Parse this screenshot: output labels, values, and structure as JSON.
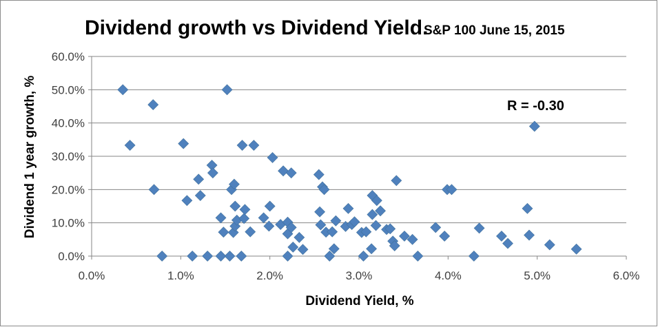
{
  "chart_data": {
    "type": "scatter",
    "title": "Dividend growth vs Dividend Yield.",
    "subtitle": "S&P 100 June 15, 2015",
    "xlabel": "Dividend Yield, %",
    "ylabel": "Dividend 1 year growth, %",
    "xlim": [
      0,
      6
    ],
    "ylim": [
      0,
      60
    ],
    "x_ticks": [
      "0.0%",
      "1.0%",
      "2.0%",
      "3.0%",
      "4.0%",
      "5.0%",
      "6.0%"
    ],
    "y_ticks": [
      "0.0%",
      "10.0%",
      "20.0%",
      "30.0%",
      "40.0%",
      "50.0%",
      "60.0%"
    ],
    "grid": "horizontal",
    "legend": "none",
    "annotation": "R = -0.30",
    "marker_color": "#4F81BD",
    "points": [
      [
        0.35,
        50.0
      ],
      [
        0.43,
        33.3
      ],
      [
        0.69,
        45.5
      ],
      [
        0.7,
        20.0
      ],
      [
        0.79,
        0.0
      ],
      [
        1.03,
        33.8
      ],
      [
        1.07,
        16.7
      ],
      [
        1.13,
        0.0
      ],
      [
        1.2,
        23.1
      ],
      [
        1.22,
        18.2
      ],
      [
        1.3,
        0.0
      ],
      [
        1.35,
        27.3
      ],
      [
        1.36,
        25.0
      ],
      [
        1.45,
        0.0
      ],
      [
        1.45,
        11.5
      ],
      [
        1.48,
        7.2
      ],
      [
        1.52,
        50.0
      ],
      [
        1.55,
        0.0
      ],
      [
        1.57,
        20.0
      ],
      [
        1.59,
        7.1
      ],
      [
        1.6,
        21.6
      ],
      [
        1.61,
        15.0
      ],
      [
        1.61,
        9.0
      ],
      [
        1.63,
        10.8
      ],
      [
        1.68,
        0.0
      ],
      [
        1.69,
        33.3
      ],
      [
        1.71,
        11.3
      ],
      [
        1.72,
        14.0
      ],
      [
        1.78,
        7.3
      ],
      [
        1.82,
        33.3
      ],
      [
        1.93,
        11.5
      ],
      [
        1.99,
        9.0
      ],
      [
        2.0,
        15.0
      ],
      [
        2.03,
        29.6
      ],
      [
        2.12,
        9.5
      ],
      [
        2.15,
        25.6
      ],
      [
        2.2,
        0.0
      ],
      [
        2.2,
        6.7
      ],
      [
        2.2,
        10.2
      ],
      [
        2.24,
        25.0
      ],
      [
        2.24,
        8.6
      ],
      [
        2.26,
        2.7
      ],
      [
        2.33,
        5.6
      ],
      [
        2.37,
        2.0
      ],
      [
        2.55,
        24.5
      ],
      [
        2.56,
        13.3
      ],
      [
        2.57,
        9.4
      ],
      [
        2.59,
        20.8
      ],
      [
        2.61,
        20.0
      ],
      [
        2.63,
        7.2
      ],
      [
        2.67,
        0.0
      ],
      [
        2.7,
        7.3
      ],
      [
        2.72,
        2.2
      ],
      [
        2.74,
        10.6
      ],
      [
        2.85,
        8.9
      ],
      [
        2.88,
        14.3
      ],
      [
        2.92,
        9.5
      ],
      [
        2.95,
        10.3
      ],
      [
        3.03,
        7.1
      ],
      [
        3.05,
        0.0
      ],
      [
        3.08,
        7.3
      ],
      [
        3.14,
        2.2
      ],
      [
        3.15,
        12.5
      ],
      [
        3.15,
        18.2
      ],
      [
        3.19,
        9.2
      ],
      [
        3.2,
        16.7
      ],
      [
        3.24,
        13.6
      ],
      [
        3.31,
        8.0
      ],
      [
        3.35,
        8.2
      ],
      [
        3.38,
        4.5
      ],
      [
        3.4,
        3.1
      ],
      [
        3.42,
        22.7
      ],
      [
        3.51,
        6.0
      ],
      [
        3.6,
        5.0
      ],
      [
        3.66,
        0.0
      ],
      [
        3.86,
        8.6
      ],
      [
        3.96,
        6.0
      ],
      [
        3.99,
        20.0
      ],
      [
        4.04,
        20.0
      ],
      [
        4.29,
        0.0
      ],
      [
        4.35,
        8.4
      ],
      [
        4.6,
        6.0
      ],
      [
        4.67,
        3.8
      ],
      [
        4.89,
        14.3
      ],
      [
        4.91,
        6.3
      ],
      [
        4.97,
        39.0
      ],
      [
        5.14,
        3.4
      ],
      [
        5.44,
        2.1
      ]
    ]
  }
}
